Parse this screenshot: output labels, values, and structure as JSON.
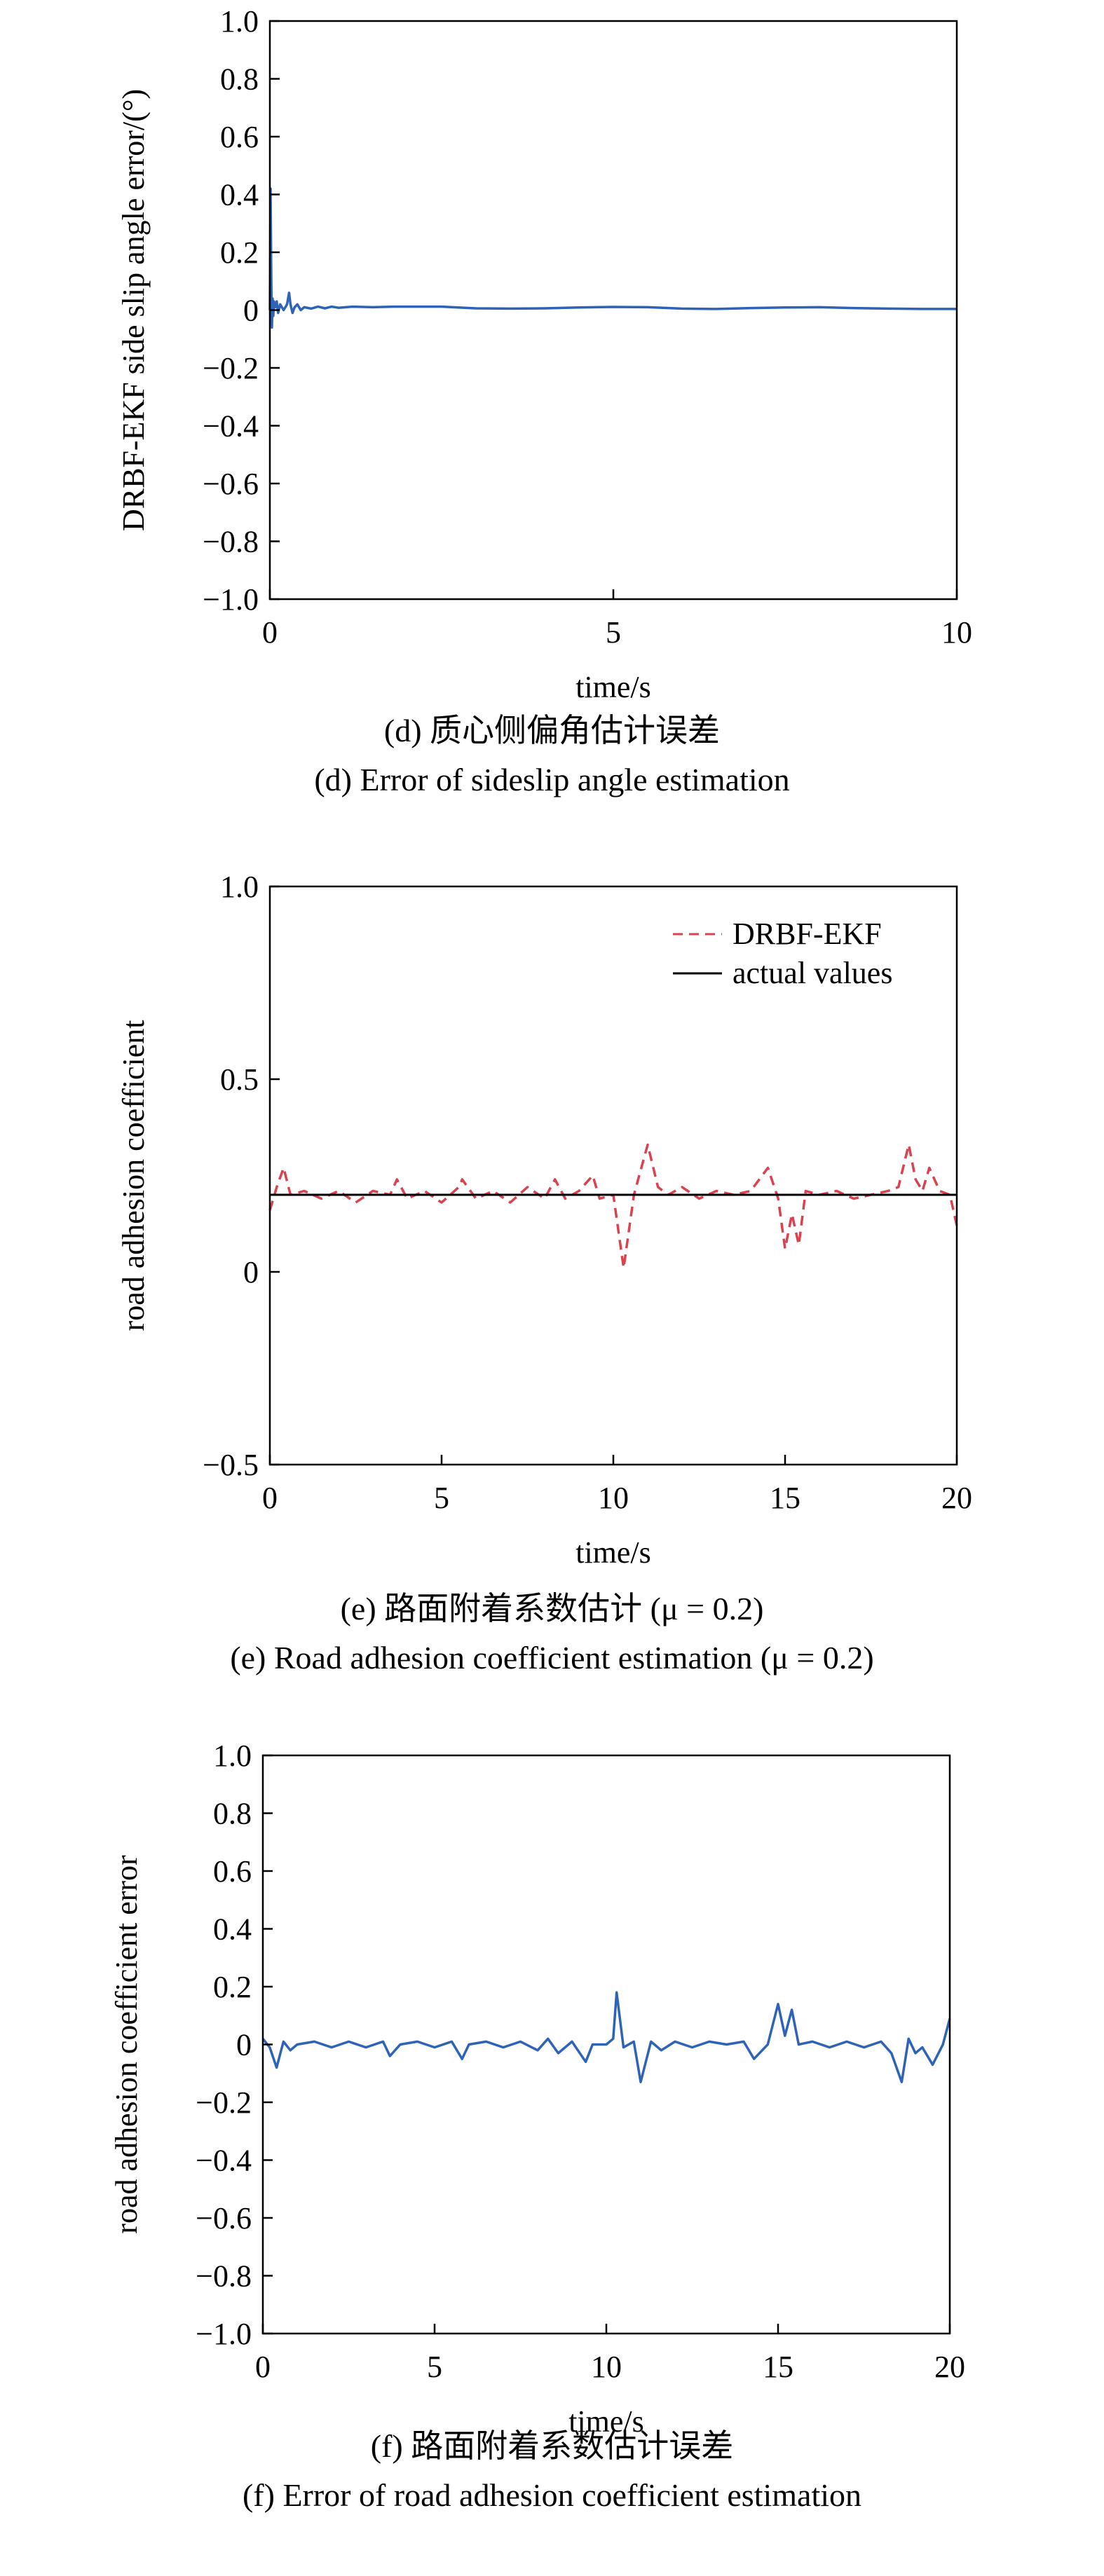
{
  "chart_data": [
    {
      "type": "line",
      "xlabel": "time/s",
      "ylabel": "DRBF-EKF side slip angle error/(°)",
      "xlim": [
        0,
        10
      ],
      "ylim": [
        -1.0,
        1.0
      ],
      "x_ticks": [
        0,
        5,
        10
      ],
      "x_tick_labels": [
        "0",
        "5",
        "10"
      ],
      "y_ticks": [
        1.0,
        0.8,
        0.6,
        0.4,
        0.2,
        0,
        -0.2,
        -0.4,
        -0.6,
        -0.8,
        -1.0
      ],
      "y_tick_labels": [
        "1.0",
        "0.8",
        "0.6",
        "0.4",
        "0.2",
        "0",
        "−0.2",
        "−0.4",
        "−0.6",
        "−0.8",
        "−1.0"
      ],
      "grid": false,
      "legend": [],
      "caption_cn": "(d) 质心侧偏角估计误差",
      "caption_en": "(d) Error of sideslip angle estimation",
      "series": [
        {
          "color": "#2e63b8",
          "dash": "",
          "x": [
            0,
            0.01,
            0.02,
            0.03,
            0.04,
            0.05,
            0.06,
            0.08,
            0.1,
            0.12,
            0.15,
            0.2,
            0.25,
            0.28,
            0.3,
            0.33,
            0.36,
            0.4,
            0.45,
            0.5,
            0.6,
            0.7,
            0.8,
            0.9,
            1.0,
            1.2,
            1.5,
            1.8,
            2.0,
            2.5,
            3.0,
            3.5,
            4.0,
            4.5,
            5.0,
            5.5,
            6.0,
            6.5,
            7.0,
            7.5,
            8.0,
            8.5,
            9.0,
            9.5,
            10.0
          ],
          "y": [
            0.0,
            0.42,
            0.1,
            -0.06,
            0.04,
            -0.02,
            0.03,
            0.01,
            0.03,
            -0.01,
            0.02,
            0.0,
            0.02,
            0.06,
            0.02,
            -0.01,
            0.01,
            0.02,
            0.0,
            0.01,
            0.005,
            0.012,
            0.006,
            0.012,
            0.008,
            0.012,
            0.01,
            0.012,
            0.012,
            0.012,
            0.006,
            0.005,
            0.006,
            0.009,
            0.011,
            0.01,
            0.005,
            0.004,
            0.007,
            0.009,
            0.01,
            0.007,
            0.005,
            0.004,
            0.004
          ]
        }
      ]
    },
    {
      "type": "line",
      "xlabel": "time/s",
      "ylabel": "road adhesion coefficient",
      "xlim": [
        0,
        20
      ],
      "ylim": [
        -0.5,
        1.0
      ],
      "x_ticks": [
        0,
        5,
        10,
        15,
        20
      ],
      "x_tick_labels": [
        "0",
        "5",
        "10",
        "15",
        "20"
      ],
      "y_ticks": [
        1.0,
        0.5,
        0,
        -0.5
      ],
      "y_tick_labels": [
        "1.0",
        "0.5",
        "0",
        "−0.5"
      ],
      "grid": false,
      "legend_position": "top-right",
      "legend": [
        {
          "label": "DRBF-EKF",
          "color": "#d9424e",
          "dash": "14,9"
        },
        {
          "label": "actual values",
          "color": "#000000",
          "dash": ""
        }
      ],
      "caption_cn": "(e) 路面附着系数估计 (μ = 0.2)",
      "caption_en": "(e) Road adhesion coefficient estimation (μ = 0.2)",
      "series": [
        {
          "name": "DRBF-EKF",
          "color": "#d9424e",
          "dash": "14,9",
          "x": [
            0,
            0.2,
            0.4,
            0.6,
            1.0,
            1.5,
            2.0,
            2.5,
            3.0,
            3.5,
            3.7,
            4.0,
            4.5,
            5.0,
            5.5,
            5.6,
            6.0,
            6.5,
            7.0,
            7.5,
            8.0,
            8.3,
            8.6,
            9.0,
            9.4,
            9.6,
            10.0,
            10.3,
            10.6,
            11.0,
            11.3,
            11.6,
            12.0,
            12.5,
            13.0,
            13.5,
            14.0,
            14.5,
            14.8,
            15.0,
            15.2,
            15.4,
            15.6,
            16.0,
            16.5,
            17.0,
            17.5,
            18.0,
            18.3,
            18.6,
            18.8,
            19.0,
            19.2,
            19.5,
            19.8,
            20.0
          ],
          "y": [
            0.16,
            0.22,
            0.27,
            0.2,
            0.21,
            0.19,
            0.21,
            0.18,
            0.21,
            0.2,
            0.24,
            0.19,
            0.21,
            0.18,
            0.22,
            0.24,
            0.19,
            0.21,
            0.18,
            0.22,
            0.19,
            0.24,
            0.19,
            0.21,
            0.25,
            0.19,
            0.2,
            0.01,
            0.2,
            0.33,
            0.22,
            0.2,
            0.22,
            0.19,
            0.21,
            0.2,
            0.21,
            0.27,
            0.19,
            0.06,
            0.15,
            0.07,
            0.21,
            0.2,
            0.21,
            0.19,
            0.2,
            0.21,
            0.22,
            0.33,
            0.24,
            0.21,
            0.27,
            0.21,
            0.2,
            0.12
          ]
        },
        {
          "name": "actual values",
          "color": "#000000",
          "dash": "",
          "x": [
            0,
            20
          ],
          "y": [
            0.2,
            0.2
          ]
        }
      ]
    },
    {
      "type": "line",
      "xlabel": "time/s",
      "ylabel": "road adhesion coefficient error",
      "xlim": [
        0,
        20
      ],
      "ylim": [
        -1.0,
        1.0
      ],
      "x_ticks": [
        0,
        5,
        10,
        15,
        20
      ],
      "x_tick_labels": [
        "0",
        "5",
        "10",
        "15",
        "20"
      ],
      "y_ticks": [
        1.0,
        0.8,
        0.6,
        0.4,
        0.2,
        0,
        -0.2,
        -0.4,
        -0.6,
        -0.8,
        -1.0
      ],
      "y_tick_labels": [
        "1.0",
        "0.8",
        "0.6",
        "0.4",
        "0.2",
        "0",
        "−0.2",
        "−0.4",
        "−0.6",
        "−0.8",
        "−1.0"
      ],
      "grid": false,
      "legend": [],
      "caption_cn": "(f) 路面附着系数估计误差",
      "caption_en": "(f) Error of road adhesion coefficient estimation",
      "series": [
        {
          "color": "#2e63b8",
          "dash": "",
          "x": [
            0,
            0.2,
            0.4,
            0.6,
            0.8,
            1.0,
            1.5,
            2.0,
            2.5,
            3.0,
            3.5,
            3.7,
            4.0,
            4.5,
            5.0,
            5.5,
            5.8,
            6.0,
            6.5,
            7.0,
            7.5,
            8.0,
            8.3,
            8.6,
            9.0,
            9.4,
            9.6,
            10.0,
            10.2,
            10.3,
            10.5,
            10.8,
            11.0,
            11.3,
            11.6,
            12.0,
            12.5,
            13.0,
            13.5,
            14.0,
            14.3,
            14.7,
            15.0,
            15.2,
            15.4,
            15.6,
            16.0,
            16.5,
            17.0,
            17.5,
            18.0,
            18.3,
            18.6,
            18.8,
            19.0,
            19.2,
            19.5,
            19.8,
            20.0
          ],
          "y": [
            0.02,
            -0.01,
            -0.08,
            0.01,
            -0.02,
            0.0,
            0.01,
            -0.01,
            0.01,
            -0.01,
            0.01,
            -0.04,
            0.0,
            0.01,
            -0.01,
            0.01,
            -0.05,
            0.0,
            0.01,
            -0.01,
            0.01,
            -0.02,
            0.02,
            -0.03,
            0.01,
            -0.06,
            0.0,
            0.0,
            0.02,
            0.18,
            -0.01,
            0.01,
            -0.13,
            0.01,
            -0.02,
            0.01,
            -0.01,
            0.01,
            0.0,
            0.01,
            -0.05,
            0.0,
            0.14,
            0.03,
            0.12,
            0.0,
            0.01,
            -0.01,
            0.01,
            -0.01,
            0.01,
            -0.03,
            -0.13,
            0.02,
            -0.03,
            -0.01,
            -0.07,
            0.0,
            0.09
          ]
        }
      ]
    }
  ]
}
